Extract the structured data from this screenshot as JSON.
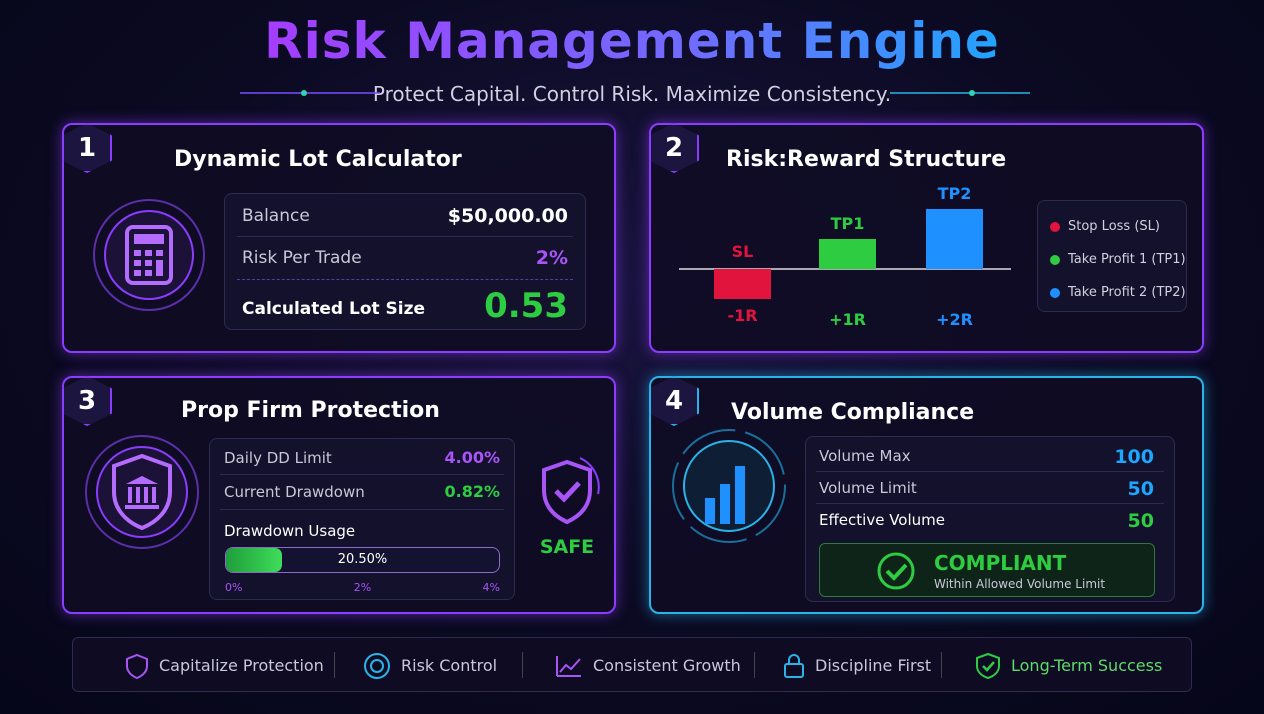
{
  "header": {
    "title": "Risk Management Engine",
    "subtitle": "Protect Capital. Control Risk. Maximize Consistency."
  },
  "panels": {
    "lot_calculator": {
      "number": "1",
      "title": "Dynamic Lot Calculator",
      "rows": [
        [
          "Balance",
          "$50,000.00"
        ],
        [
          "Risk Per Trade",
          "2%"
        ],
        [
          "Calculated Lot Size",
          "0.53"
        ]
      ]
    },
    "risk_reward": {
      "number": "2",
      "title": "Risk:Reward Structure",
      "chart": {
        "type": "bar",
        "categories": [
          "SL",
          "TP1",
          "TP2"
        ],
        "values": [
          -1,
          1,
          2
        ],
        "value_labels": [
          "-1R",
          "+1R",
          "+2R"
        ],
        "colors": [
          "#e0143c",
          "#2ecc40",
          "#1e90ff"
        ],
        "legend": [
          "Stop Loss (SL)",
          "Take Profit 1 (TP1)",
          "Take Profit 2 (TP2)"
        ]
      }
    },
    "prop_firm": {
      "number": "3",
      "title": "Prop Firm Protection",
      "daily_dd_limit": {
        "name": "Daily DD Limit",
        "value": 4,
        "label": "4.00%"
      },
      "current_drawdown": {
        "name": "Current Drawdown",
        "value": 0.82,
        "label": "0.82%"
      },
      "usage": {
        "title": "Drawdown Usage",
        "label": "20.50%",
        "ticks": [
          {
            "value": 0,
            "label": "0%"
          },
          {
            "value": 2,
            "label": "2%"
          },
          {
            "value": 4,
            "label": "4%"
          }
        ]
      },
      "status": "SAFE"
    },
    "volume": {
      "number": "4",
      "title": "Volume Compliance",
      "rows": [
        [
          "Volume Max",
          "100"
        ],
        [
          "Volume Limit",
          "50"
        ],
        [
          "Effective Volume",
          "50"
        ]
      ],
      "status": "COMPLIANT",
      "status_note": "Within Allowed Volume Limit"
    }
  },
  "footer": [
    "Capitalize Protection",
    "Risk Control",
    "Consistent Growth",
    "Discipline First",
    "Long-Term Success"
  ]
}
